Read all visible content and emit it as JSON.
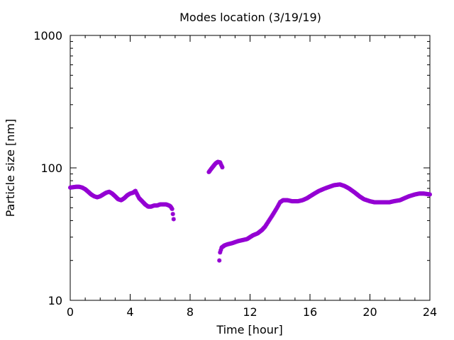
{
  "chart_data": {
    "type": "scatter",
    "title": "Modes location (3/19/19)",
    "xlabel": "Time [hour]",
    "ylabel": "Particle size [nm]",
    "xlim": [
      0,
      24
    ],
    "ylim": [
      10,
      1000
    ],
    "yscale": "log",
    "xticks": [
      0,
      4,
      8,
      12,
      16,
      20,
      24
    ],
    "xtick_labels": [
      "0",
      "4",
      "8",
      "12",
      "16",
      "20",
      "24"
    ],
    "yticks": [
      10,
      100,
      1000
    ],
    "ytick_labels": [
      "10",
      "100",
      "1000"
    ],
    "grid": false,
    "legend": "none",
    "marker_color": "#9400D3",
    "series": [
      {
        "x": [
          0.0,
          0.2,
          0.4,
          0.6,
          0.8,
          1.0,
          1.2,
          1.4,
          1.6,
          1.8,
          2.0,
          2.2,
          2.4,
          2.6,
          2.8,
          3.0,
          3.2,
          3.4,
          3.6,
          3.8,
          4.0,
          4.2,
          4.35,
          4.5,
          4.6,
          4.8,
          5.0,
          5.2,
          5.4,
          5.6,
          5.8,
          6.0,
          6.2,
          6.4,
          6.6,
          6.7,
          6.8,
          6.9,
          9.25,
          9.4,
          9.55,
          9.7,
          9.85,
          10.0,
          10.15,
          9.95,
          10.0,
          10.1,
          10.3,
          10.5,
          10.8,
          11.0,
          11.2,
          11.5,
          11.8,
          12.0,
          12.2,
          12.5,
          12.8,
          13.0,
          13.2,
          13.5,
          13.8,
          14.0,
          14.2,
          14.5,
          14.8,
          15.0,
          15.2,
          15.5,
          15.8,
          16.0,
          16.3,
          16.6,
          17.0,
          17.3,
          17.6,
          18.0,
          18.3,
          18.6,
          19.0,
          19.3,
          19.6,
          20.0,
          20.3,
          20.6,
          21.0,
          21.3,
          21.6,
          22.0,
          22.3,
          22.6,
          23.0,
          23.3,
          23.6,
          24.0
        ],
        "y": [
          71,
          71.5,
          72,
          72,
          71,
          69,
          66,
          63,
          61,
          60,
          61,
          63,
          65,
          66,
          64,
          61,
          58,
          57,
          59,
          62,
          64,
          65,
          67,
          62,
          59,
          56,
          53,
          51,
          51,
          52,
          52,
          53,
          53,
          53,
          52,
          51,
          49,
          41,
          93,
          98,
          103,
          108,
          111,
          110,
          101,
          20,
          23,
          25,
          26,
          26.5,
          27,
          27.5,
          28,
          28.5,
          29,
          30,
          31,
          32,
          34,
          36,
          39,
          44,
          50,
          55,
          57,
          57,
          56,
          56,
          56,
          57,
          59,
          61,
          64,
          67,
          70,
          72,
          74,
          75,
          73,
          70,
          65,
          61,
          58,
          56,
          55,
          55,
          55,
          55,
          56,
          57,
          59,
          61,
          63,
          64,
          64,
          63
        ]
      }
    ]
  }
}
